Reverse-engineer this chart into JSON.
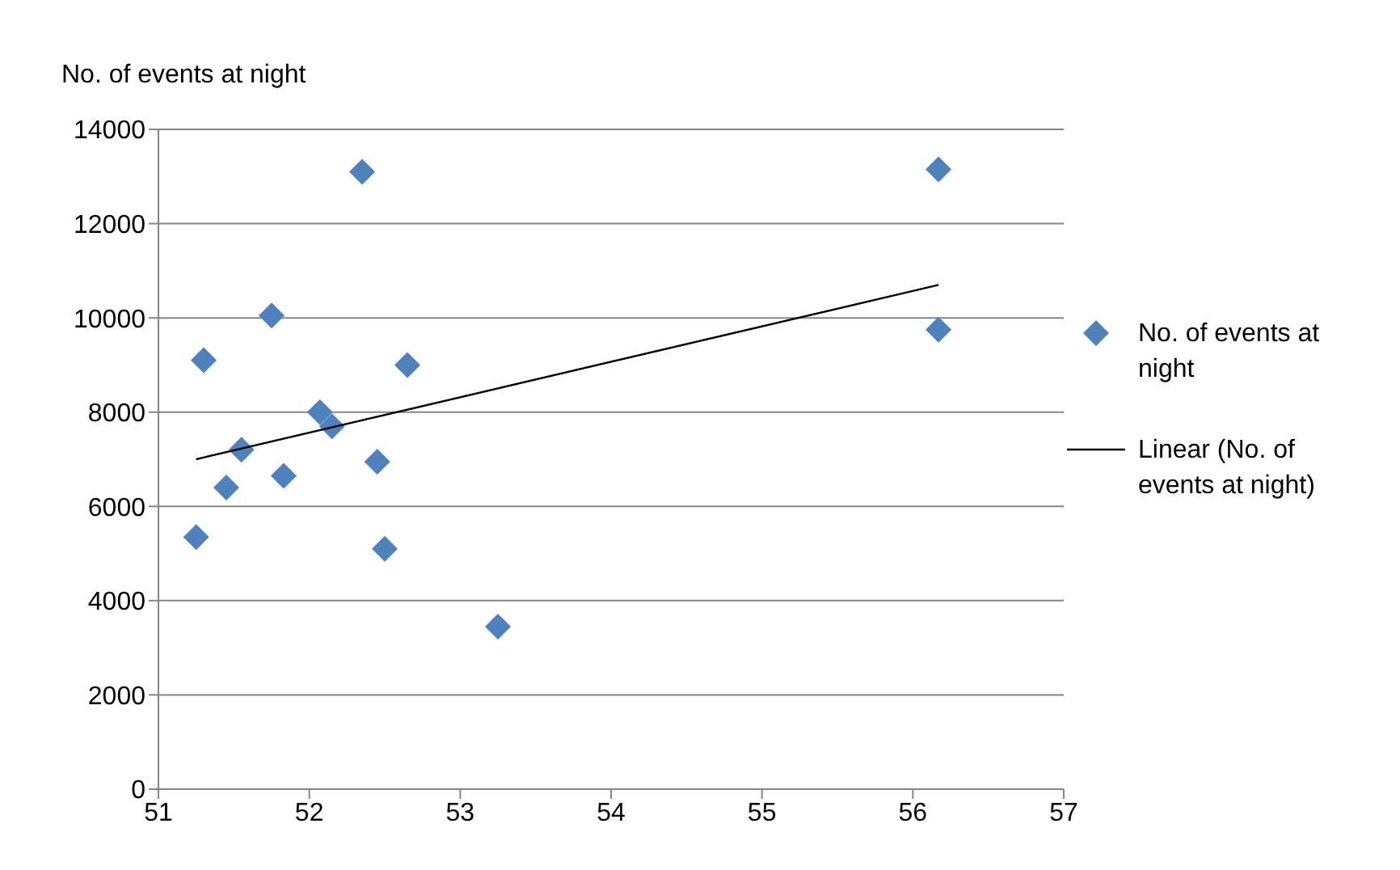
{
  "chart_data": {
    "type": "scatter",
    "title": "No. of events at night",
    "xlim": [
      51,
      57
    ],
    "xticks": [
      51,
      52,
      53,
      54,
      55,
      56,
      57
    ],
    "ylim": [
      0,
      14000
    ],
    "yticks": [
      0,
      2000,
      4000,
      6000,
      8000,
      10000,
      12000,
      14000
    ],
    "grid": "y",
    "legend": "right",
    "marker": "diamond",
    "series": [
      {
        "name": "No. of events at night",
        "color": "#4f81bd",
        "x": [
          51.25,
          51.3,
          51.45,
          51.55,
          51.75,
          51.83,
          52.07,
          52.15,
          52.35,
          52.45,
          52.5,
          52.65,
          53.25,
          56.17,
          56.17
        ],
        "values": [
          5350,
          9100,
          6400,
          7200,
          10050,
          6650,
          8000,
          7700,
          13100,
          6950,
          5100,
          9000,
          3450,
          13150,
          9750
        ]
      },
      {
        "name": "Linear (No. of events at night)",
        "type": "line",
        "color": "#000000",
        "marker": "none",
        "line_style": "solid",
        "x": [
          51.25,
          56.17
        ],
        "values": [
          7000,
          10700
        ]
      }
    ]
  }
}
